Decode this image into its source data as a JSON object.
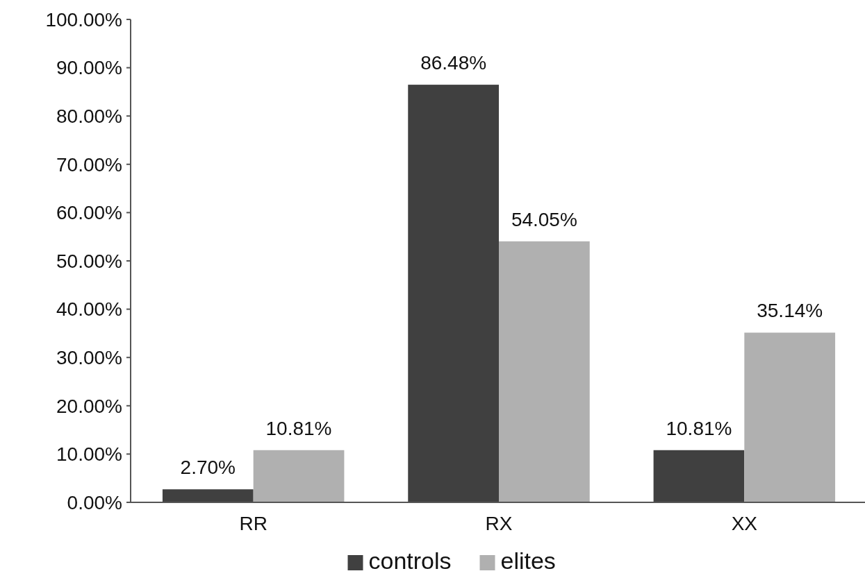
{
  "chart_data": {
    "type": "bar",
    "categories": [
      "RR",
      "RX",
      "XX"
    ],
    "series": [
      {
        "name": "controls",
        "color": "#404040",
        "values": [
          2.7,
          86.48,
          10.81
        ],
        "value_labels": [
          "2.70%",
          "86.48%",
          "10.81%"
        ]
      },
      {
        "name": "elites",
        "color": "#b0b0b0",
        "values": [
          10.81,
          54.05,
          35.14
        ],
        "value_labels": [
          "10.81%",
          "54.05%",
          "35.14%"
        ]
      }
    ],
    "ylim": [
      0,
      100
    ],
    "yticks": [
      {
        "value": 0,
        "label": "0.00%"
      },
      {
        "value": 10,
        "label": "10.00%"
      },
      {
        "value": 20,
        "label": "20.00%"
      },
      {
        "value": 30,
        "label": "30.00%"
      },
      {
        "value": 40,
        "label": "40.00%"
      },
      {
        "value": 50,
        "label": "50.00%"
      },
      {
        "value": 60,
        "label": "60.00%"
      },
      {
        "value": 70,
        "label": "70.00%"
      },
      {
        "value": 80,
        "label": "80.00%"
      },
      {
        "value": 90,
        "label": "90.00%"
      },
      {
        "value": 100,
        "label": "100.00%"
      }
    ],
    "grid": false,
    "legend": "bottom"
  }
}
